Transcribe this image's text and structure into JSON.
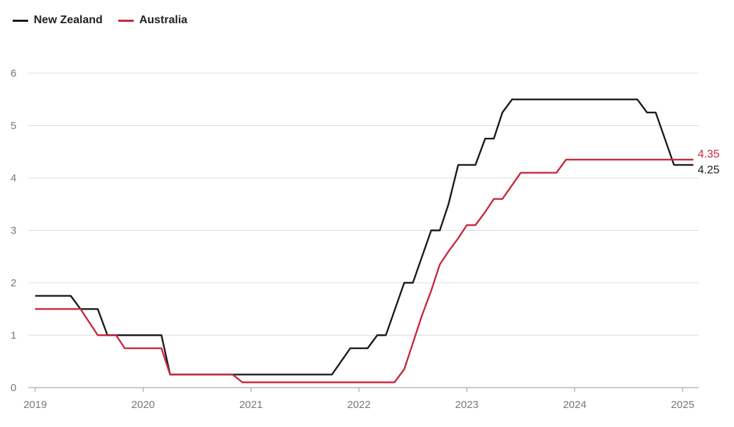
{
  "legend": [
    {
      "label": "New Zealand",
      "color": "#1a1a1a"
    },
    {
      "label": "Australia",
      "color": "#c8283c"
    }
  ],
  "chart_data": {
    "type": "line",
    "title": "",
    "xlabel": "",
    "ylabel": "",
    "ylim": [
      0,
      6
    ],
    "xlim": [
      2019.0,
      2025.15
    ],
    "yticks": [
      "0",
      "1",
      "2",
      "3",
      "4",
      "5",
      "6"
    ],
    "xticks": [
      "2019",
      "2020",
      "2021",
      "2022",
      "2023",
      "2024",
      "2025"
    ],
    "grid": true,
    "legend_position": "top-left",
    "series": [
      {
        "name": "New Zealand",
        "color": "#1a1a1a",
        "end_label": "4.25",
        "points": [
          [
            2019.0,
            1.75
          ],
          [
            2019.33,
            1.75
          ],
          [
            2019.42,
            1.5
          ],
          [
            2019.58,
            1.5
          ],
          [
            2019.67,
            1.0
          ],
          [
            2020.17,
            1.0
          ],
          [
            2020.25,
            0.25
          ],
          [
            2021.75,
            0.25
          ],
          [
            2021.92,
            0.75
          ],
          [
            2022.08,
            0.75
          ],
          [
            2022.17,
            1.0
          ],
          [
            2022.25,
            1.0
          ],
          [
            2022.42,
            2.0
          ],
          [
            2022.5,
            2.0
          ],
          [
            2022.67,
            3.0
          ],
          [
            2022.75,
            3.0
          ],
          [
            2022.83,
            3.5
          ],
          [
            2022.92,
            4.25
          ],
          [
            2023.08,
            4.25
          ],
          [
            2023.17,
            4.75
          ],
          [
            2023.25,
            4.75
          ],
          [
            2023.33,
            5.25
          ],
          [
            2023.42,
            5.5
          ],
          [
            2024.58,
            5.5
          ],
          [
            2024.67,
            5.25
          ],
          [
            2024.75,
            5.25
          ],
          [
            2024.92,
            4.25
          ],
          [
            2025.1,
            4.25
          ]
        ]
      },
      {
        "name": "Australia",
        "color": "#c8283c",
        "end_label": "4.35",
        "points": [
          [
            2019.0,
            1.5
          ],
          [
            2019.42,
            1.5
          ],
          [
            2019.58,
            1.0
          ],
          [
            2019.75,
            1.0
          ],
          [
            2019.83,
            0.75
          ],
          [
            2020.17,
            0.75
          ],
          [
            2020.25,
            0.25
          ],
          [
            2020.83,
            0.25
          ],
          [
            2020.92,
            0.1
          ],
          [
            2022.33,
            0.1
          ],
          [
            2022.42,
            0.35
          ],
          [
            2022.5,
            0.85
          ],
          [
            2022.58,
            1.35
          ],
          [
            2022.67,
            1.85
          ],
          [
            2022.75,
            2.35
          ],
          [
            2022.83,
            2.6
          ],
          [
            2022.92,
            2.85
          ],
          [
            2023.0,
            3.1
          ],
          [
            2023.08,
            3.1
          ],
          [
            2023.17,
            3.35
          ],
          [
            2023.25,
            3.6
          ],
          [
            2023.33,
            3.6
          ],
          [
            2023.5,
            4.1
          ],
          [
            2023.83,
            4.1
          ],
          [
            2023.92,
            4.35
          ],
          [
            2025.1,
            4.35
          ]
        ]
      }
    ]
  }
}
